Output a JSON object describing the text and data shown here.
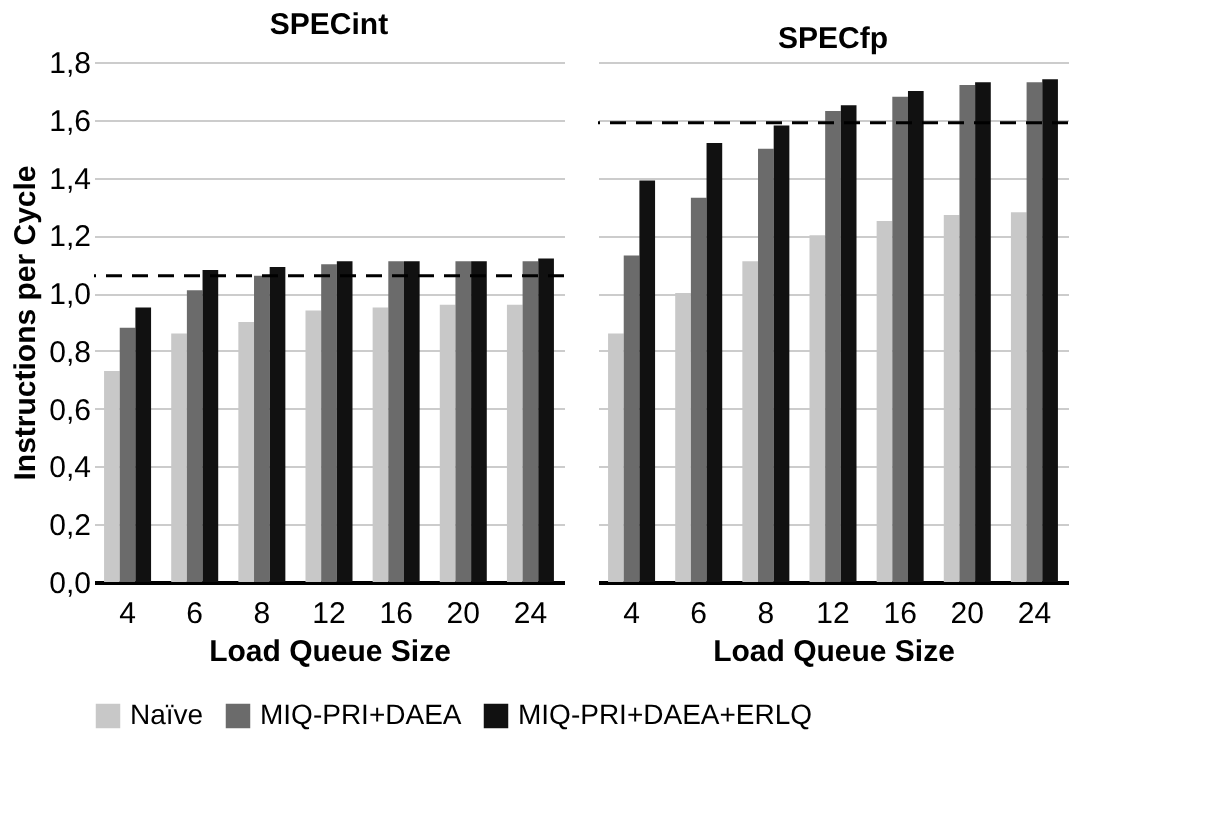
{
  "chart_data": [
    {
      "type": "bar",
      "title": "SPECint",
      "ylabel": "Instructions per Cycle",
      "xlabel": "Load Queue Size",
      "categories": [
        "4",
        "6",
        "8",
        "12",
        "16",
        "20",
        "24"
      ],
      "series": [
        {
          "name": "Naïve",
          "color": "#c8c8c8",
          "values": [
            0.73,
            0.86,
            0.9,
            0.94,
            0.95,
            0.96,
            0.96
          ]
        },
        {
          "name": "MIQ-PRI+DAEA",
          "color": "#6b6b6b",
          "values": [
            0.88,
            1.01,
            1.06,
            1.1,
            1.11,
            1.11,
            1.11
          ]
        },
        {
          "name": "MIQ-PRI+DAEA+ERLQ",
          "color": "#111111",
          "values": [
            0.95,
            1.08,
            1.09,
            1.11,
            1.11,
            1.11,
            1.12
          ]
        }
      ],
      "ylim": [
        0,
        1.8
      ],
      "yticks": [
        {
          "value": 0,
          "label": "0,0"
        },
        {
          "value": 0.2,
          "label": "0,2"
        },
        {
          "value": 0.4,
          "label": "0,4"
        },
        {
          "value": 0.6,
          "label": "0,6"
        },
        {
          "value": 0.8,
          "label": "0,8"
        },
        {
          "value": 1.0,
          "label": "1,0"
        },
        {
          "value": 1.2,
          "label": "1,2"
        },
        {
          "value": 1.4,
          "label": "1,4"
        },
        {
          "value": 1.6,
          "label": "1,6"
        },
        {
          "value": 1.8,
          "label": "1,8"
        }
      ],
      "ref_lines": [
        {
          "axis": "y",
          "value": 1.06,
          "label": null,
          "color": "#000000",
          "line_style": "dashed"
        }
      ],
      "grid": "y",
      "legend": "bottom"
    },
    {
      "type": "bar",
      "title": "SPECfp",
      "xlabel": "Load Queue Size",
      "categories": [
        "4",
        "6",
        "8",
        "12",
        "16",
        "20",
        "24"
      ],
      "series": [
        {
          "name": "Naïve",
          "color": "#c8c8c8",
          "values": [
            0.86,
            1.0,
            1.11,
            1.2,
            1.25,
            1.27,
            1.28
          ]
        },
        {
          "name": "MIQ-PRI+DAEA",
          "color": "#6b6b6b",
          "values": [
            1.13,
            1.33,
            1.5,
            1.63,
            1.68,
            1.72,
            1.73
          ]
        },
        {
          "name": "MIQ-PRI+DAEA+ERLQ",
          "color": "#111111",
          "values": [
            1.39,
            1.52,
            1.58,
            1.65,
            1.7,
            1.73,
            1.74
          ]
        }
      ],
      "ylim": [
        0,
        1.8
      ],
      "ref_lines": [
        {
          "axis": "y",
          "value": 1.59,
          "label": null,
          "color": "#000000",
          "line_style": "dashed"
        }
      ],
      "yticks": [
        0,
        0.2,
        0.4,
        0.6,
        0.8,
        1.0,
        1.2,
        1.4,
        1.6,
        1.8
      ],
      "grid": "y",
      "legend": "bottom",
      "tick_labels": "x"
    }
  ]
}
